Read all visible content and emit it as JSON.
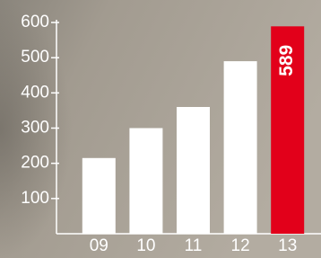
{
  "chart_data": {
    "type": "bar",
    "categories": [
      "09",
      "10",
      "11",
      "12",
      "13"
    ],
    "values": [
      215,
      300,
      360,
      490,
      589
    ],
    "value_labels": [
      null,
      null,
      null,
      null,
      "589"
    ],
    "colors": [
      "#ffffff",
      "#ffffff",
      "#ffffff",
      "#ffffff",
      "#e2001a"
    ],
    "ylim": [
      0,
      600
    ],
    "yticks": [
      100,
      200,
      300,
      400,
      500,
      600
    ],
    "grid": false
  }
}
